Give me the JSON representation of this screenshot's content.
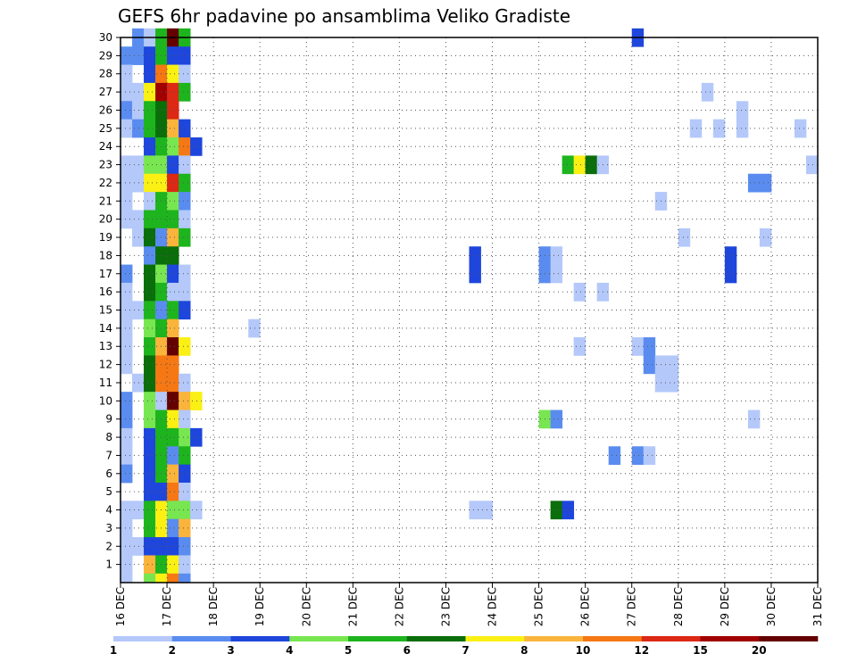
{
  "chart_data": {
    "type": "heatmap",
    "title": "GEFS 6hr padavine po ansamblima Veliko Gradiste",
    "xlabel": "",
    "ylabel": "",
    "x_tick_labels": [
      "16 DEC",
      "17 DEC",
      "18 DEC",
      "19 DEC",
      "20 DEC",
      "21 DEC",
      "22 DEC",
      "23 DEC",
      "24 DEC",
      "25 DEC",
      "26 DEC",
      "27 DEC",
      "28 DEC",
      "29 DEC",
      "30 DEC",
      "31 DEC"
    ],
    "y_tick_labels": [
      "1",
      "2",
      "3",
      "4",
      "5",
      "6",
      "7",
      "8",
      "9",
      "10",
      "11",
      "12",
      "13",
      "14",
      "15",
      "16",
      "17",
      "18",
      "19",
      "20",
      "21",
      "22",
      "23",
      "24",
      "25",
      "26",
      "27",
      "28",
      "29",
      "30"
    ],
    "time_step_hours": 6,
    "member_range": [
      0,
      30
    ],
    "grid": true,
    "colorbar": {
      "labels": [
        "1",
        "2",
        "3",
        "4",
        "5",
        "6",
        "7",
        "8",
        "10",
        "12",
        "15",
        "20"
      ],
      "colors": [
        "#b4c8fa",
        "#5a8cf0",
        "#1e46dc",
        "#78e650",
        "#1eb41e",
        "#0a6e0a",
        "#faf014",
        "#fab43c",
        "#f57814",
        "#dc2814",
        "#a00000",
        "#640000"
      ]
    },
    "palette": {
      "l1": "#b4c8fa",
      "l2": "#5a8cf0",
      "l3": "#1e46dc",
      "l4": "#78e650",
      "l5": "#1eb41e",
      "l6": "#0a6e0a",
      "l7": "#faf014",
      "l8": "#fab43c",
      "l10": "#f57814",
      "l12": "#dc2814",
      "l15": "#a00000",
      "l20": "#640000"
    },
    "cells": [
      {
        "m": 30,
        "t": 1,
        "c": "l2"
      },
      {
        "m": 30,
        "t": 2,
        "c": "l1"
      },
      {
        "m": 30,
        "t": 3,
        "c": "l5"
      },
      {
        "m": 30,
        "t": 4,
        "c": "l20"
      },
      {
        "m": 30,
        "t": 5,
        "c": "l5"
      },
      {
        "m": 30,
        "t": 44,
        "c": "l3"
      },
      {
        "m": 29,
        "t": 0,
        "c": "l2"
      },
      {
        "m": 29,
        "t": 1,
        "c": "l2"
      },
      {
        "m": 29,
        "t": 2,
        "c": "l3"
      },
      {
        "m": 29,
        "t": 3,
        "c": "l5"
      },
      {
        "m": 29,
        "t": 4,
        "c": "l3"
      },
      {
        "m": 29,
        "t": 5,
        "c": "l3"
      },
      {
        "m": 28,
        "t": 0,
        "c": "l1"
      },
      {
        "m": 28,
        "t": 2,
        "c": "l3"
      },
      {
        "m": 28,
        "t": 3,
        "c": "l10"
      },
      {
        "m": 28,
        "t": 4,
        "c": "l7"
      },
      {
        "m": 28,
        "t": 5,
        "c": "l1"
      },
      {
        "m": 27,
        "t": 0,
        "c": "l1"
      },
      {
        "m": 27,
        "t": 1,
        "c": "l1"
      },
      {
        "m": 27,
        "t": 2,
        "c": "l7"
      },
      {
        "m": 27,
        "t": 3,
        "c": "l15"
      },
      {
        "m": 27,
        "t": 4,
        "c": "l12"
      },
      {
        "m": 27,
        "t": 5,
        "c": "l5"
      },
      {
        "m": 27,
        "t": 50,
        "c": "l1"
      },
      {
        "m": 26,
        "t": 0,
        "c": "l2"
      },
      {
        "m": 26,
        "t": 1,
        "c": "l1"
      },
      {
        "m": 26,
        "t": 2,
        "c": "l5"
      },
      {
        "m": 26,
        "t": 3,
        "c": "l6"
      },
      {
        "m": 26,
        "t": 4,
        "c": "l12"
      },
      {
        "m": 26,
        "t": 53,
        "c": "l1"
      },
      {
        "m": 25,
        "t": 0,
        "c": "l1"
      },
      {
        "m": 25,
        "t": 1,
        "c": "l2"
      },
      {
        "m": 25,
        "t": 2,
        "c": "l5"
      },
      {
        "m": 25,
        "t": 3,
        "c": "l6"
      },
      {
        "m": 25,
        "t": 4,
        "c": "l8"
      },
      {
        "m": 25,
        "t": 5,
        "c": "l3"
      },
      {
        "m": 25,
        "t": 49,
        "c": "l1"
      },
      {
        "m": 25,
        "t": 51,
        "c": "l1"
      },
      {
        "m": 25,
        "t": 53,
        "c": "l1"
      },
      {
        "m": 25,
        "t": 58,
        "c": "l1"
      },
      {
        "m": 24,
        "t": 2,
        "c": "l3"
      },
      {
        "m": 24,
        "t": 3,
        "c": "l5"
      },
      {
        "m": 24,
        "t": 4,
        "c": "l4"
      },
      {
        "m": 24,
        "t": 5,
        "c": "l10"
      },
      {
        "m": 24,
        "t": 6,
        "c": "l3"
      },
      {
        "m": 23,
        "t": 0,
        "c": "l1"
      },
      {
        "m": 23,
        "t": 1,
        "c": "l1"
      },
      {
        "m": 23,
        "t": 2,
        "c": "l4"
      },
      {
        "m": 23,
        "t": 3,
        "c": "l4"
      },
      {
        "m": 23,
        "t": 4,
        "c": "l3"
      },
      {
        "m": 23,
        "t": 5,
        "c": "l1"
      },
      {
        "m": 23,
        "t": 38,
        "c": "l5"
      },
      {
        "m": 23,
        "t": 39,
        "c": "l7"
      },
      {
        "m": 23,
        "t": 40,
        "c": "l6"
      },
      {
        "m": 23,
        "t": 41,
        "c": "l1"
      },
      {
        "m": 23,
        "t": 59,
        "c": "l1"
      },
      {
        "m": 22,
        "t": 0,
        "c": "l1"
      },
      {
        "m": 22,
        "t": 1,
        "c": "l1"
      },
      {
        "m": 22,
        "t": 2,
        "c": "l7"
      },
      {
        "m": 22,
        "t": 3,
        "c": "l7"
      },
      {
        "m": 22,
        "t": 4,
        "c": "l12"
      },
      {
        "m": 22,
        "t": 5,
        "c": "l5"
      },
      {
        "m": 22,
        "t": 54,
        "c": "l2"
      },
      {
        "m": 22,
        "t": 55,
        "c": "l2"
      },
      {
        "m": 21,
        "t": 0,
        "c": "l1"
      },
      {
        "m": 21,
        "t": 2,
        "c": "l1"
      },
      {
        "m": 21,
        "t": 3,
        "c": "l5"
      },
      {
        "m": 21,
        "t": 4,
        "c": "l4"
      },
      {
        "m": 21,
        "t": 5,
        "c": "l2"
      },
      {
        "m": 21,
        "t": 46,
        "c": "l1"
      },
      {
        "m": 20,
        "t": 0,
        "c": "l1"
      },
      {
        "m": 20,
        "t": 1,
        "c": "l1"
      },
      {
        "m": 20,
        "t": 2,
        "c": "l5"
      },
      {
        "m": 20,
        "t": 3,
        "c": "l5"
      },
      {
        "m": 20,
        "t": 4,
        "c": "l5"
      },
      {
        "m": 20,
        "t": 5,
        "c": "l1"
      },
      {
        "m": 19,
        "t": 1,
        "c": "l1"
      },
      {
        "m": 19,
        "t": 2,
        "c": "l6"
      },
      {
        "m": 19,
        "t": 3,
        "c": "l2"
      },
      {
        "m": 19,
        "t": 4,
        "c": "l8"
      },
      {
        "m": 19,
        "t": 5,
        "c": "l5"
      },
      {
        "m": 19,
        "t": 48,
        "c": "l1"
      },
      {
        "m": 19,
        "t": 55,
        "c": "l1"
      },
      {
        "m": 18,
        "t": 2,
        "c": "l2"
      },
      {
        "m": 18,
        "t": 3,
        "c": "l6"
      },
      {
        "m": 18,
        "t": 4,
        "c": "l6"
      },
      {
        "m": 18,
        "t": 30,
        "c": "l3"
      },
      {
        "m": 18,
        "t": 36,
        "c": "l2"
      },
      {
        "m": 18,
        "t": 37,
        "c": "l1"
      },
      {
        "m": 18,
        "t": 52,
        "c": "l3"
      },
      {
        "m": 17,
        "t": 0,
        "c": "l2"
      },
      {
        "m": 17,
        "t": 2,
        "c": "l6"
      },
      {
        "m": 17,
        "t": 3,
        "c": "l4"
      },
      {
        "m": 17,
        "t": 4,
        "c": "l3"
      },
      {
        "m": 17,
        "t": 5,
        "c": "l1"
      },
      {
        "m": 17,
        "t": 30,
        "c": "l3"
      },
      {
        "m": 17,
        "t": 36,
        "c": "l2"
      },
      {
        "m": 17,
        "t": 37,
        "c": "l1"
      },
      {
        "m": 17,
        "t": 52,
        "c": "l3"
      },
      {
        "m": 16,
        "t": 0,
        "c": "l1"
      },
      {
        "m": 16,
        "t": 2,
        "c": "l6"
      },
      {
        "m": 16,
        "t": 3,
        "c": "l5"
      },
      {
        "m": 16,
        "t": 4,
        "c": "l1"
      },
      {
        "m": 16,
        "t": 5,
        "c": "l1"
      },
      {
        "m": 16,
        "t": 39,
        "c": "l1"
      },
      {
        "m": 16,
        "t": 41,
        "c": "l1"
      },
      {
        "m": 15,
        "t": 0,
        "c": "l1"
      },
      {
        "m": 15,
        "t": 1,
        "c": "l1"
      },
      {
        "m": 15,
        "t": 2,
        "c": "l5"
      },
      {
        "m": 15,
        "t": 3,
        "c": "l2"
      },
      {
        "m": 15,
        "t": 4,
        "c": "l5"
      },
      {
        "m": 15,
        "t": 5,
        "c": "l3"
      },
      {
        "m": 14,
        "t": 0,
        "c": "l1"
      },
      {
        "m": 14,
        "t": 2,
        "c": "l4"
      },
      {
        "m": 14,
        "t": 3,
        "c": "l5"
      },
      {
        "m": 14,
        "t": 4,
        "c": "l8"
      },
      {
        "m": 14,
        "t": 11,
        "c": "l1"
      },
      {
        "m": 13,
        "t": 0,
        "c": "l1"
      },
      {
        "m": 13,
        "t": 2,
        "c": "l5"
      },
      {
        "m": 13,
        "t": 3,
        "c": "l8"
      },
      {
        "m": 13,
        "t": 4,
        "c": "l20"
      },
      {
        "m": 13,
        "t": 5,
        "c": "l7"
      },
      {
        "m": 13,
        "t": 39,
        "c": "l1"
      },
      {
        "m": 13,
        "t": 44,
        "c": "l1"
      },
      {
        "m": 13,
        "t": 45,
        "c": "l2"
      },
      {
        "m": 12,
        "t": 0,
        "c": "l1"
      },
      {
        "m": 12,
        "t": 2,
        "c": "l6"
      },
      {
        "m": 12,
        "t": 3,
        "c": "l10"
      },
      {
        "m": 12,
        "t": 4,
        "c": "l10"
      },
      {
        "m": 12,
        "t": 45,
        "c": "l2"
      },
      {
        "m": 12,
        "t": 46,
        "c": "l1"
      },
      {
        "m": 12,
        "t": 47,
        "c": "l1"
      },
      {
        "m": 11,
        "t": 1,
        "c": "l1"
      },
      {
        "m": 11,
        "t": 2,
        "c": "l6"
      },
      {
        "m": 11,
        "t": 3,
        "c": "l10"
      },
      {
        "m": 11,
        "t": 4,
        "c": "l10"
      },
      {
        "m": 11,
        "t": 5,
        "c": "l1"
      },
      {
        "m": 11,
        "t": 46,
        "c": "l1"
      },
      {
        "m": 11,
        "t": 47,
        "c": "l1"
      },
      {
        "m": 10,
        "t": 0,
        "c": "l2"
      },
      {
        "m": 10,
        "t": 2,
        "c": "l4"
      },
      {
        "m": 10,
        "t": 3,
        "c": "l1"
      },
      {
        "m": 10,
        "t": 4,
        "c": "l20"
      },
      {
        "m": 10,
        "t": 5,
        "c": "l8"
      },
      {
        "m": 10,
        "t": 6,
        "c": "l7"
      },
      {
        "m": 9,
        "t": 0,
        "c": "l2"
      },
      {
        "m": 9,
        "t": 2,
        "c": "l4"
      },
      {
        "m": 9,
        "t": 3,
        "c": "l5"
      },
      {
        "m": 9,
        "t": 4,
        "c": "l7"
      },
      {
        "m": 9,
        "t": 5,
        "c": "l1"
      },
      {
        "m": 9,
        "t": 36,
        "c": "l4"
      },
      {
        "m": 9,
        "t": 37,
        "c": "l2"
      },
      {
        "m": 9,
        "t": 54,
        "c": "l1"
      },
      {
        "m": 8,
        "t": 0,
        "c": "l1"
      },
      {
        "m": 8,
        "t": 2,
        "c": "l3"
      },
      {
        "m": 8,
        "t": 3,
        "c": "l5"
      },
      {
        "m": 8,
        "t": 4,
        "c": "l5"
      },
      {
        "m": 8,
        "t": 5,
        "c": "l4"
      },
      {
        "m": 8,
        "t": 6,
        "c": "l3"
      },
      {
        "m": 7,
        "t": 0,
        "c": "l1"
      },
      {
        "m": 7,
        "t": 2,
        "c": "l3"
      },
      {
        "m": 7,
        "t": 3,
        "c": "l5"
      },
      {
        "m": 7,
        "t": 4,
        "c": "l2"
      },
      {
        "m": 7,
        "t": 5,
        "c": "l5"
      },
      {
        "m": 7,
        "t": 42,
        "c": "l2"
      },
      {
        "m": 7,
        "t": 44,
        "c": "l2"
      },
      {
        "m": 7,
        "t": 45,
        "c": "l1"
      },
      {
        "m": 6,
        "t": 0,
        "c": "l2"
      },
      {
        "m": 6,
        "t": 2,
        "c": "l3"
      },
      {
        "m": 6,
        "t": 3,
        "c": "l5"
      },
      {
        "m": 6,
        "t": 4,
        "c": "l8"
      },
      {
        "m": 6,
        "t": 5,
        "c": "l3"
      },
      {
        "m": 5,
        "t": 2,
        "c": "l3"
      },
      {
        "m": 5,
        "t": 3,
        "c": "l3"
      },
      {
        "m": 5,
        "t": 4,
        "c": "l10"
      },
      {
        "m": 5,
        "t": 5,
        "c": "l1"
      },
      {
        "m": 4,
        "t": 0,
        "c": "l1"
      },
      {
        "m": 4,
        "t": 1,
        "c": "l1"
      },
      {
        "m": 4,
        "t": 2,
        "c": "l5"
      },
      {
        "m": 4,
        "t": 3,
        "c": "l7"
      },
      {
        "m": 4,
        "t": 4,
        "c": "l4"
      },
      {
        "m": 4,
        "t": 5,
        "c": "l4"
      },
      {
        "m": 4,
        "t": 6,
        "c": "l1"
      },
      {
        "m": 4,
        "t": 30,
        "c": "l1"
      },
      {
        "m": 4,
        "t": 31,
        "c": "l1"
      },
      {
        "m": 4,
        "t": 37,
        "c": "l6"
      },
      {
        "m": 4,
        "t": 38,
        "c": "l3"
      },
      {
        "m": 3,
        "t": 0,
        "c": "l1"
      },
      {
        "m": 3,
        "t": 2,
        "c": "l5"
      },
      {
        "m": 3,
        "t": 3,
        "c": "l7"
      },
      {
        "m": 3,
        "t": 4,
        "c": "l2"
      },
      {
        "m": 3,
        "t": 5,
        "c": "l8"
      },
      {
        "m": 2,
        "t": 0,
        "c": "l1"
      },
      {
        "m": 2,
        "t": 1,
        "c": "l1"
      },
      {
        "m": 2,
        "t": 2,
        "c": "l3"
      },
      {
        "m": 2,
        "t": 3,
        "c": "l3"
      },
      {
        "m": 2,
        "t": 4,
        "c": "l3"
      },
      {
        "m": 2,
        "t": 5,
        "c": "l2"
      },
      {
        "m": 1,
        "t": 0,
        "c": "l1"
      },
      {
        "m": 1,
        "t": 2,
        "c": "l8"
      },
      {
        "m": 1,
        "t": 3,
        "c": "l5"
      },
      {
        "m": 1,
        "t": 4,
        "c": "l7"
      },
      {
        "m": 1,
        "t": 5,
        "c": "l1"
      },
      {
        "m": 0,
        "t": 0,
        "c": "l1"
      },
      {
        "m": 0,
        "t": 2,
        "c": "l4"
      },
      {
        "m": 0,
        "t": 3,
        "c": "l7"
      },
      {
        "m": 0,
        "t": 4,
        "c": "l10"
      },
      {
        "m": 0,
        "t": 5,
        "c": "l2"
      },
      {
        "m": -1,
        "t": 2,
        "c": "l5"
      },
      {
        "m": -1,
        "t": 3,
        "c": "l5"
      },
      {
        "m": -1,
        "t": 4,
        "c": "l12"
      },
      {
        "m": -1,
        "t": 5,
        "c": "l5"
      },
      {
        "m": -1,
        "t": 54,
        "c": "l4"
      },
      {
        "m": -1,
        "t": 58,
        "c": "l12"
      },
      {
        "m": -1,
        "t": 59,
        "c": "l2"
      }
    ]
  }
}
